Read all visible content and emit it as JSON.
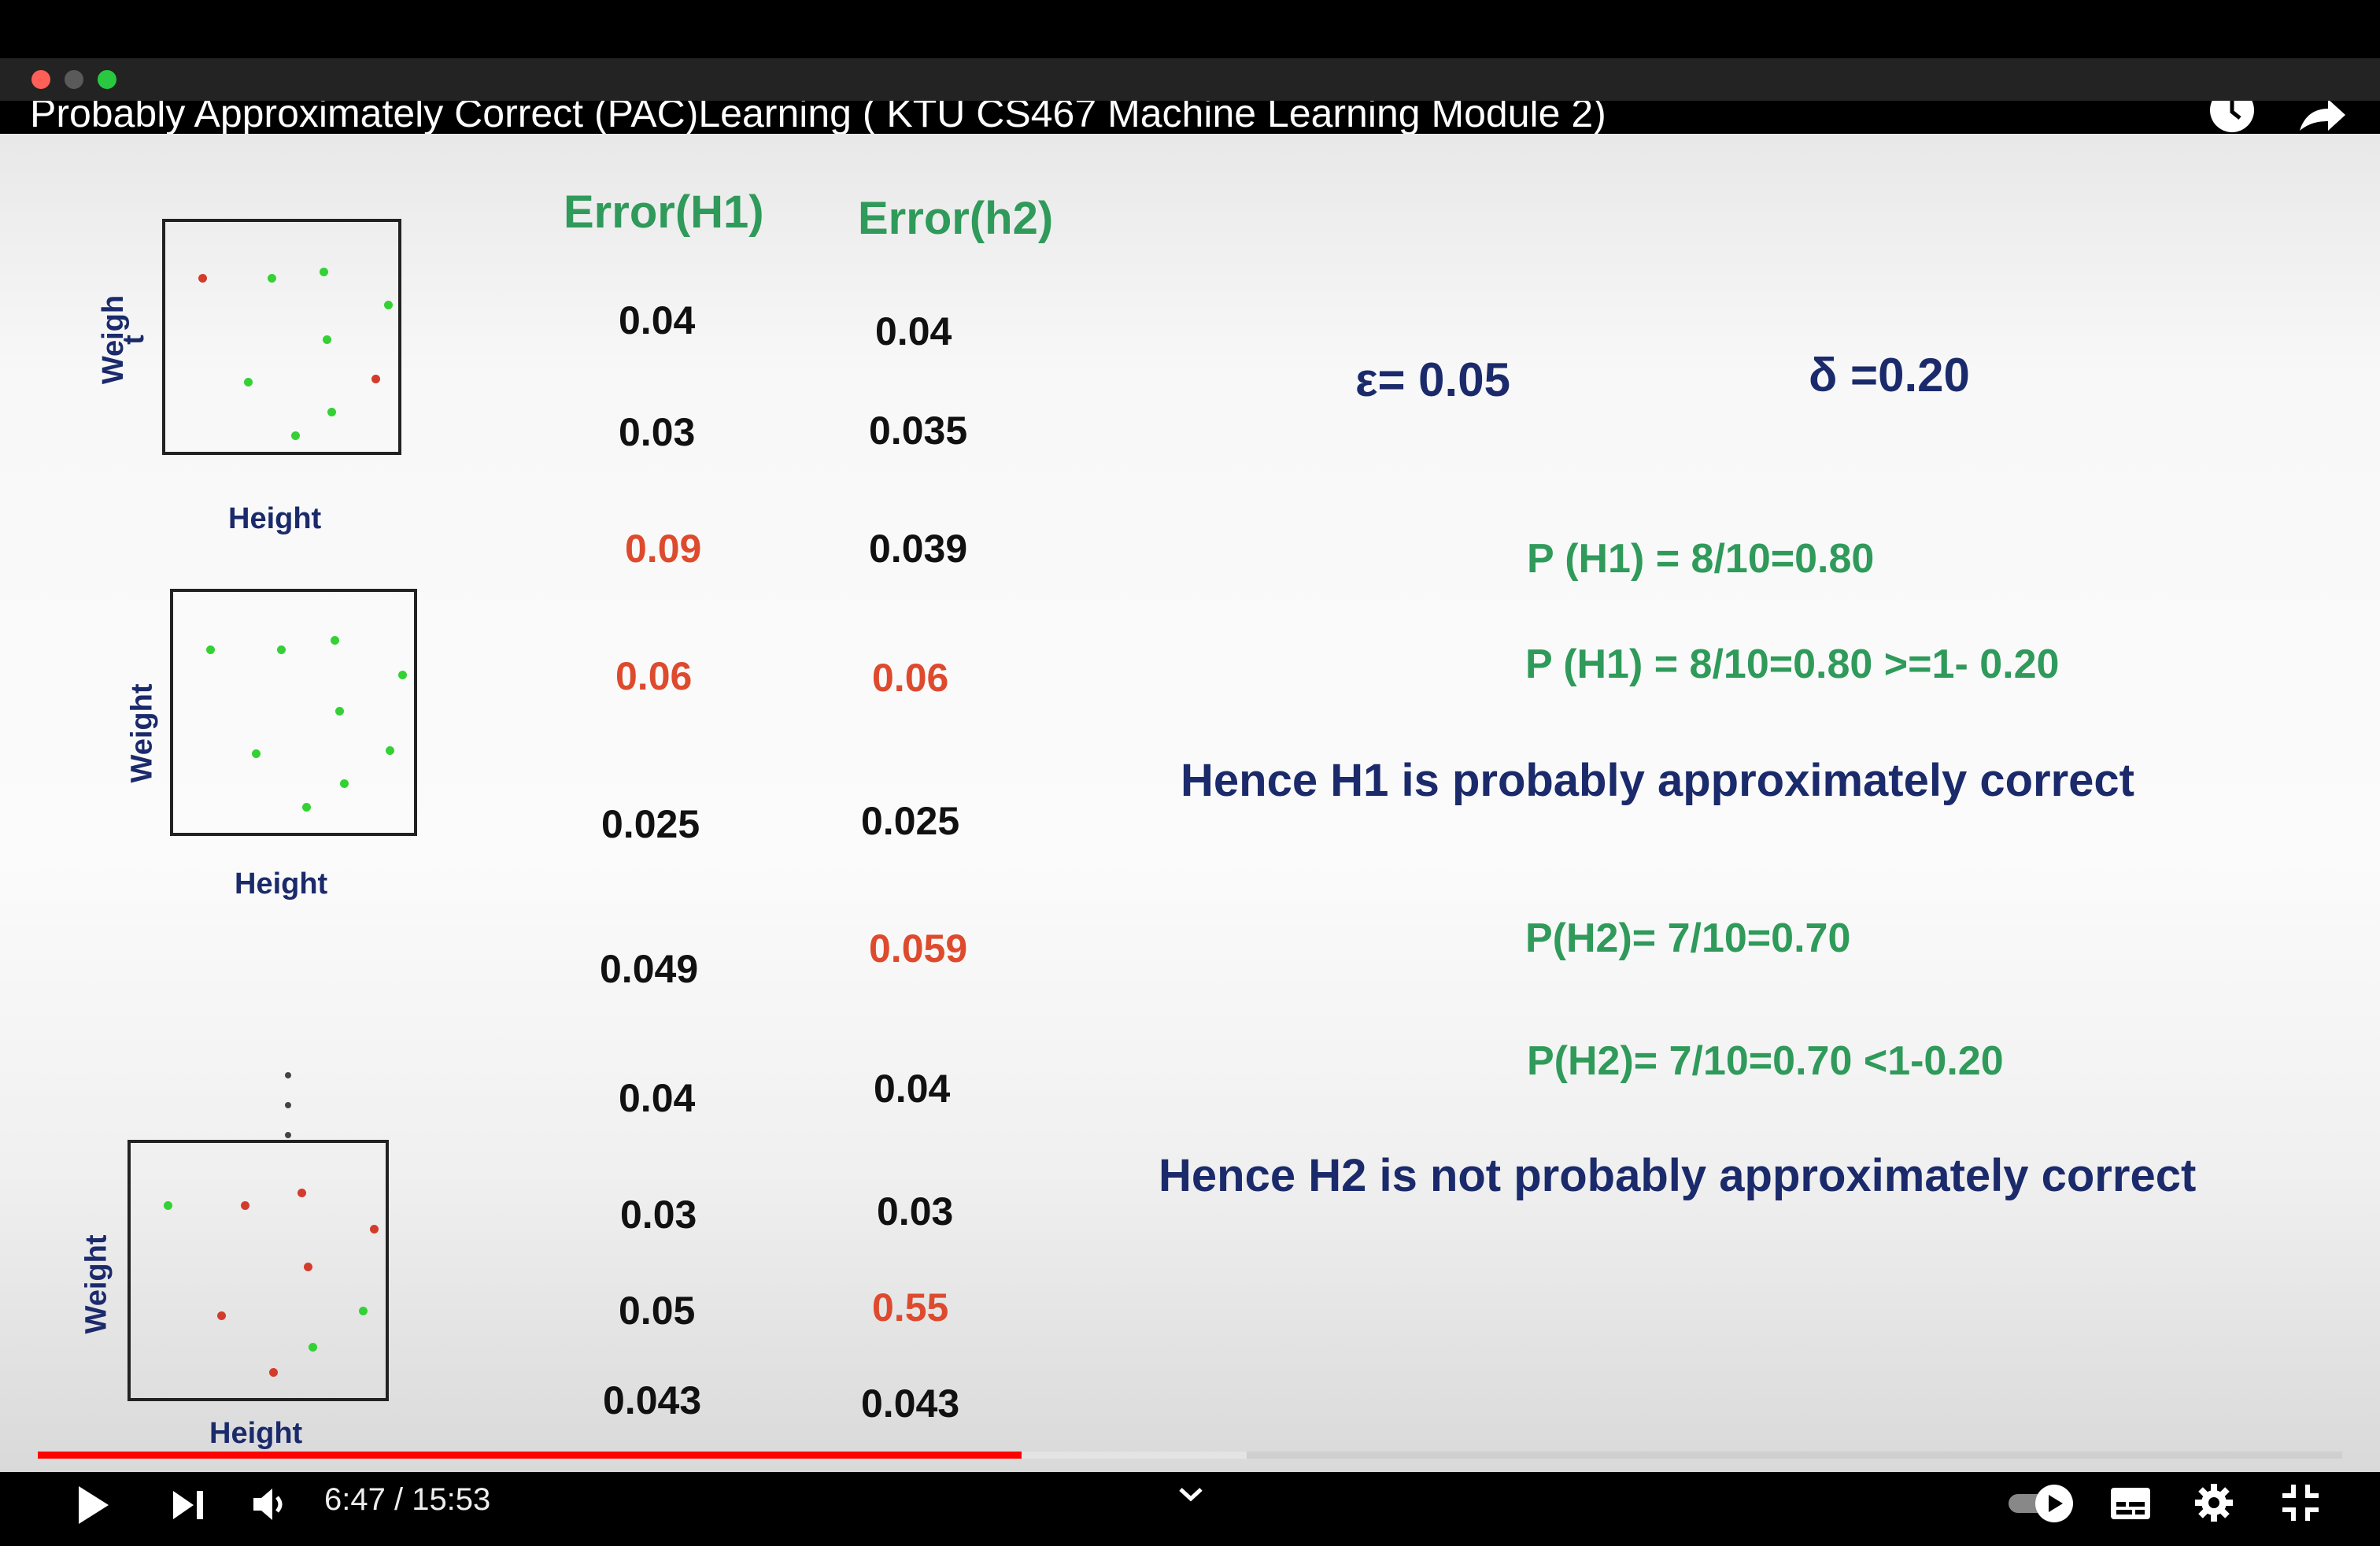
{
  "video": {
    "title": "Probably Approximately Correct (PAC)Learning ( KTU CS467 Machine Learning Module 2)",
    "time_current": "6:47",
    "time_total": "15:53",
    "time_display": "6:47 / 15:53",
    "progress_fraction": 0.427
  },
  "window": {
    "controls": [
      "close",
      "minimize",
      "zoom"
    ]
  },
  "slide": {
    "plots": [
      {
        "ylabel_a": "Weigh",
        "ylabel_b": "t",
        "xlabel": "Height"
      },
      {
        "ylabel": "Weight",
        "xlabel": "Height"
      },
      {
        "ylabel": "Weight",
        "xlabel": "Height"
      }
    ],
    "col_h1": "Error(H1)",
    "col_h2": "Error(h2)",
    "h1_values": [
      "0.04",
      "0.03",
      "0.09",
      "0.06",
      "0.025",
      "0.049",
      "0.04",
      "0.03",
      "0.05",
      "0.043"
    ],
    "h2_values": [
      "0.04",
      "0.035",
      "0.039",
      "0.06",
      "0.025",
      "0.059",
      "0.04",
      "0.03",
      "0.55",
      "0.043"
    ],
    "epsilon": "ε= 0.05",
    "delta": "δ =0.20",
    "p_h1_line1": "P (H1) = 8/10=0.80",
    "p_h1_line2": "P (H1) = 8/10=0.80 >=1- 0.20",
    "h1_conclusion": "Hence H1 is probably approximately correct",
    "p_h2_line1": "P(H2)= 7/10=0.70",
    "p_h2_line2": "P(H2)= 7/10=0.70 <1-0.20",
    "h2_conclusion": "Hence H2 is not probably approximately correct"
  },
  "colors": {
    "green": "#2f9a5a",
    "navy": "#1b2a6b",
    "red": "#de4a2d",
    "progress": "#ff0000"
  },
  "icons": [
    "watch-later-icon",
    "share-icon",
    "play-icon",
    "next-icon",
    "volume-icon",
    "chevron-down-icon",
    "autoplay-toggle-icon",
    "subtitles-icon",
    "settings-icon",
    "exit-fullscreen-icon"
  ]
}
